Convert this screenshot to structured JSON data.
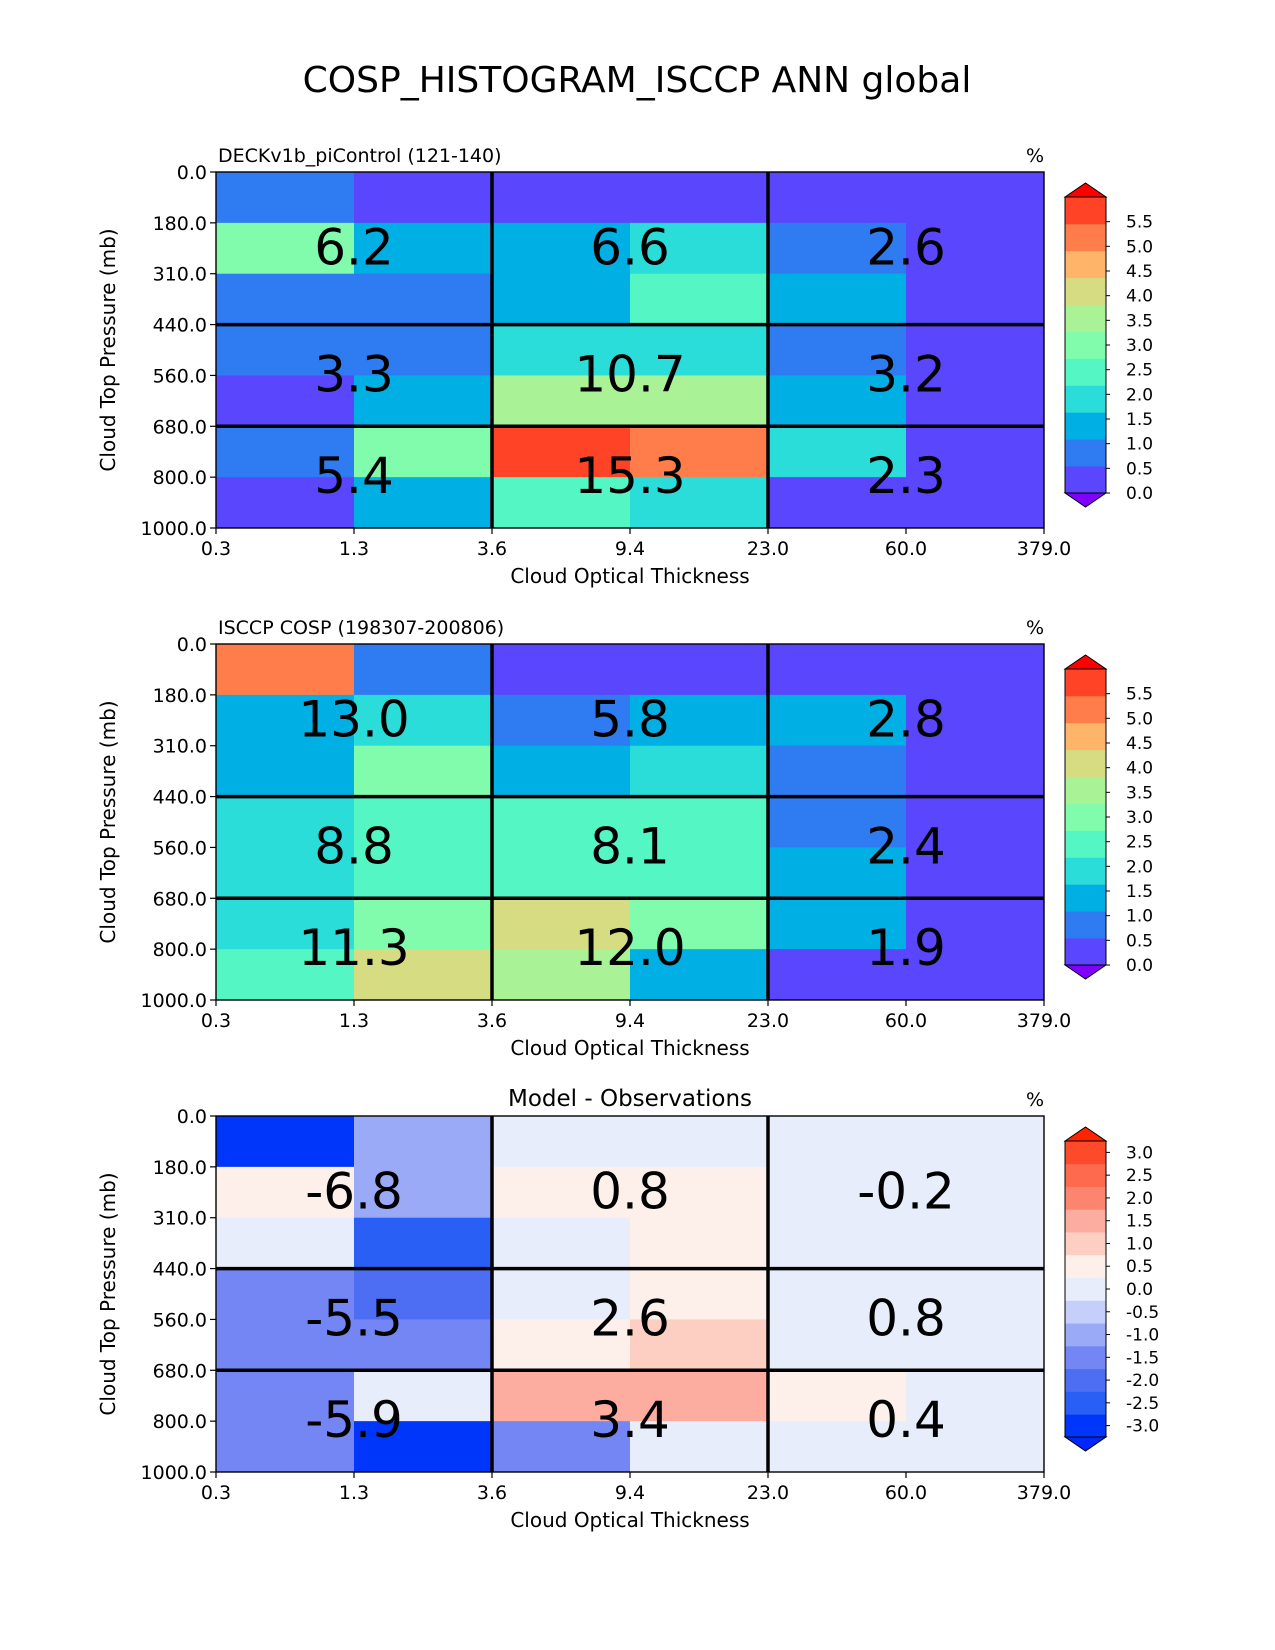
{
  "figure_title": "COSP_HISTOGRAM_ISCCP ANN global",
  "x_ticks": [
    "0.3",
    "1.3",
    "3.6",
    "9.4",
    "23.0",
    "60.0",
    "379.0"
  ],
  "y_ticks": [
    "0.0",
    "180.0",
    "310.0",
    "440.0",
    "560.0",
    "680.0",
    "800.0",
    "1000.0"
  ],
  "xlabel": "Cloud Optical Thickness",
  "ylabel": "Cloud Top Pressure (mb)",
  "chart_data": [
    {
      "type": "heatmap",
      "title": "DECKv1b_piControl (121-140)",
      "title_position": "left",
      "units": "%",
      "colorbar": {
        "colors": [
          "#7f00ff",
          "#5a46fc",
          "#2e7bf2",
          "#00b0e5",
          "#2addd9",
          "#54f6c4",
          "#81fcac",
          "#aaf296",
          "#d6dc81",
          "#feb569",
          "#ff7d4a",
          "#ff4327",
          "#ff0000"
        ],
        "ticks": [
          "5.5",
          "5.0",
          "4.5",
          "4.0",
          "3.5",
          "3.0",
          "2.5",
          "2.0",
          "1.5",
          "1.0",
          "0.5",
          "0.0"
        ]
      },
      "cells": [
        [
          1,
          0,
          0,
          0,
          0,
          0
        ],
        [
          3.1,
          1.5,
          1.5,
          2.0,
          0.8,
          0.0
        ],
        [
          0.9,
          0.9,
          1.6,
          2.6,
          1.3,
          0.1
        ],
        [
          0.8,
          0.8,
          2.1,
          2.0,
          0.9,
          0.0
        ],
        [
          0.2,
          1.4,
          3.5,
          3.5,
          1.4,
          0.1
        ],
        [
          0.6,
          3.2,
          5.8,
          5.3,
          2.1,
          0.1
        ],
        [
          0.3,
          1.4,
          2.7,
          2.0,
          0.3,
          0.1
        ]
      ],
      "group_totals": [
        [
          "6.2",
          "6.6",
          "2.6"
        ],
        [
          "3.3",
          "10.7",
          "3.2"
        ],
        [
          "5.4",
          "15.3",
          "2.3"
        ]
      ]
    },
    {
      "type": "heatmap",
      "title": "ISCCP COSP (198307-200806)",
      "title_position": "left",
      "units": "%",
      "colorbar": {
        "colors": [
          "#7f00ff",
          "#5a46fc",
          "#2e7bf2",
          "#00b0e5",
          "#2addd9",
          "#54f6c4",
          "#81fcac",
          "#aaf296",
          "#d6dc81",
          "#feb569",
          "#ff7d4a",
          "#ff4327",
          "#ff0000"
        ],
        "ticks": [
          "5.5",
          "5.0",
          "4.5",
          "4.0",
          "3.5",
          "3.0",
          "2.5",
          "2.0",
          "1.5",
          "1.0",
          "0.5",
          "0.0"
        ]
      },
      "cells": [
        [
          5.2,
          0.9,
          0.1,
          0.1,
          0.1,
          0.1
        ],
        [
          1.4,
          1.9,
          0.9,
          1.3,
          1.3,
          0.1
        ],
        [
          1.4,
          3.2,
          1.3,
          1.9,
          0.9,
          0.1
        ],
        [
          1.9,
          2.6,
          2.2,
          2.2,
          0.9,
          0.1
        ],
        [
          1.9,
          2.6,
          2.4,
          2.4,
          1.4,
          0.1
        ],
        [
          1.9,
          3.2,
          4.2,
          2.8,
          1.3,
          0.1
        ],
        [
          2.2,
          4.2,
          3.8,
          1.4,
          0.3,
          0.1
        ]
      ],
      "group_totals": [
        [
          "13.0",
          "5.8",
          "2.8"
        ],
        [
          "8.8",
          "8.1",
          "2.4"
        ],
        [
          "11.3",
          "12.0",
          "1.9"
        ]
      ]
    },
    {
      "type": "heatmap",
      "title": "Model - Observations",
      "title_position": "center",
      "units": "%",
      "colorbar": {
        "colors": [
          "#0026ff",
          "#0036f9",
          "#2a5ff5",
          "#4d6df2",
          "#7486f3",
          "#9aaaf6",
          "#c5cffa",
          "#e8edfc",
          "#fdefea",
          "#fdcfc3",
          "#fdada0",
          "#fd8570",
          "#fd6a4d",
          "#fc4a2b",
          "#fe2400"
        ],
        "ticks": [
          "3.0",
          "2.5",
          "2.0",
          "1.5",
          "1.0",
          "0.5",
          "0.0",
          "-0.5",
          "-1.0",
          "-1.5",
          "-2.0",
          "-2.5",
          "-3.0"
        ]
      },
      "cells": [
        [
          -3.2,
          -0.8,
          -0.2,
          -0.2,
          -0.2,
          -0.2
        ],
        [
          0.6,
          -0.9,
          0.3,
          0.3,
          -0.2,
          0.2
        ],
        [
          -0.2,
          -2.3,
          -0.2,
          0.6,
          0.2,
          0.2
        ],
        [
          -1.3,
          -1.8,
          -0.2,
          0.6,
          0.2,
          0.2
        ],
        [
          -1.3,
          -1.3,
          0.6,
          1.0,
          0.2,
          -0.2
        ],
        [
          -1.3,
          -0.2,
          1.6,
          1.6,
          0.6,
          -0.2
        ],
        [
          -1.3,
          -3.2,
          -1.3,
          0.2,
          -0.2,
          -0.2
        ]
      ],
      "group_totals": [
        [
          "-6.8",
          "0.8",
          "-0.2"
        ],
        [
          "-5.5",
          "2.6",
          "0.8"
        ],
        [
          "-5.9",
          "3.4",
          "0.4"
        ]
      ]
    }
  ]
}
